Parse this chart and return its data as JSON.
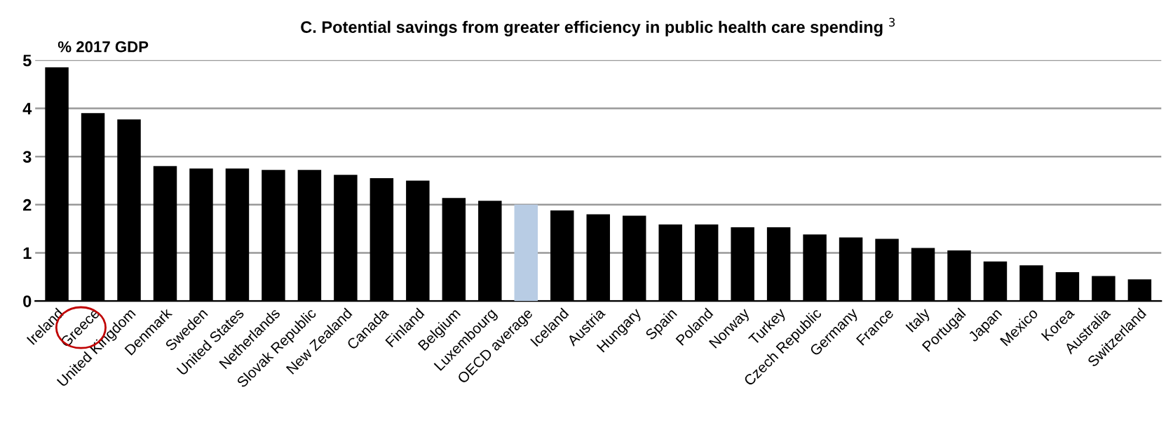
{
  "chart_data": {
    "type": "bar",
    "title": "C. Potential savings from greater efficiency in public health care spending $^{3}$",
    "ylabel": "% 2017 GDP",
    "categories": [
      "Ireland",
      "Greece",
      "United Kingdom",
      "Denmark",
      "Sweden",
      "United States",
      "Netherlands",
      "Slovak Republic",
      "New Zealand",
      "Canada",
      "Finland",
      "Belgium",
      "Luxembourg",
      "OECD average",
      "Iceland",
      "Austria",
      "Hungary",
      "Spain",
      "Poland",
      "Norway",
      "Turkey",
      "Czech Republic",
      "Germany",
      "France",
      "Italy",
      "Portugal",
      "Japan",
      "Mexico",
      "Korea",
      "Australia",
      "Switzerland"
    ],
    "values": [
      4.85,
      3.9,
      3.77,
      2.8,
      2.75,
      2.75,
      2.72,
      2.72,
      2.62,
      2.55,
      2.5,
      2.14,
      2.08,
      2.0,
      1.88,
      1.8,
      1.77,
      1.59,
      1.59,
      1.53,
      1.53,
      1.38,
      1.32,
      1.29,
      1.1,
      1.05,
      0.82,
      0.74,
      0.6,
      0.52,
      0.45
    ],
    "colors": [
      "#000000",
      "#000000",
      "#000000",
      "#000000",
      "#000000",
      "#000000",
      "#000000",
      "#000000",
      "#000000",
      "#000000",
      "#000000",
      "#000000",
      "#000000",
      "#b8cce4",
      "#000000",
      "#000000",
      "#000000",
      "#000000",
      "#000000",
      "#000000",
      "#000000",
      "#000000",
      "#000000",
      "#000000",
      "#000000",
      "#000000",
      "#000000",
      "#000000",
      "#000000",
      "#000000",
      "#000000"
    ],
    "ylim": [
      0,
      5
    ],
    "yticks": [
      0,
      1,
      2,
      3,
      4,
      5
    ],
    "grid": "y",
    "legend": false
  }
}
